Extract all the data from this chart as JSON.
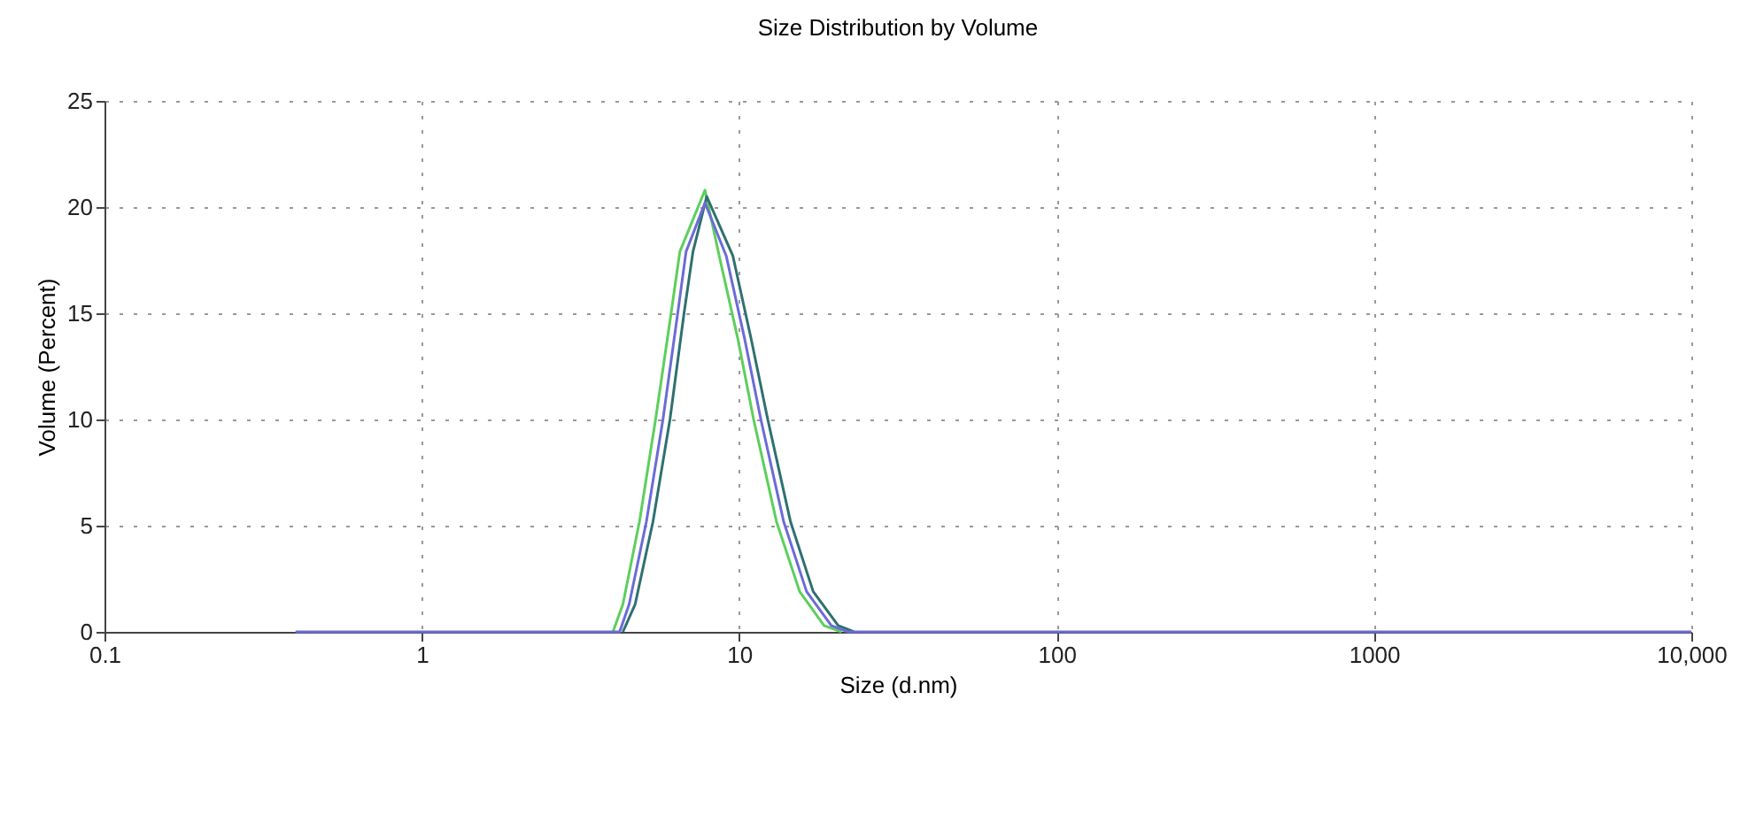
{
  "chart_data": {
    "type": "line",
    "title": "Size Distribution by Volume",
    "xlabel": "Size (d.nm)",
    "ylabel": "Volume (Percent)",
    "log": "x",
    "xlim": [
      0.1,
      10000
    ],
    "xticks": [
      0.1,
      1,
      10,
      100,
      1000,
      {
        "value": 10000,
        "label": "10,000"
      }
    ],
    "ylim": [
      0,
      25
    ],
    "yticks": [
      0,
      5,
      10,
      15,
      20,
      25
    ],
    "grid": true,
    "line_style": "solid",
    "series": [
      {
        "color": "#5ccf5c",
        "x": [
          4.0,
          4.3,
          4.85,
          5.45,
          6.1,
          6.5,
          7.8,
          8.65,
          9.9,
          11.1,
          13.1,
          15.5,
          18.5,
          21
        ],
        "values": [
          0,
          1.3,
          5.2,
          10,
          15,
          17.9,
          20.8,
          17.7,
          13.8,
          10,
          5.2,
          1.9,
          0.3,
          0
        ]
      },
      {
        "color": "#2f7070",
        "x": [
          4.3,
          4.7,
          5.35,
          6.05,
          6.7,
          7.15,
          7.9,
          9.55,
          10.9,
          12.3,
          14.5,
          17.1,
          20.5,
          23
        ],
        "values": [
          0,
          1.3,
          5.2,
          10,
          15,
          17.9,
          20.5,
          17.7,
          13.8,
          10,
          5.2,
          1.9,
          0.3,
          0
        ]
      },
      {
        "color": "#6b6bd6",
        "x": [
          0.4,
          4.2,
          4.5,
          5.1,
          5.75,
          6.4,
          6.8,
          7.8,
          9.1,
          10.4,
          11.7,
          13.8,
          16.3,
          19.5,
          22,
          10000
        ],
        "values": [
          0,
          0,
          1.3,
          5.2,
          10,
          15,
          17.9,
          20.2,
          17.7,
          13.8,
          10,
          5.2,
          1.9,
          0.3,
          0,
          0
        ]
      }
    ]
  }
}
